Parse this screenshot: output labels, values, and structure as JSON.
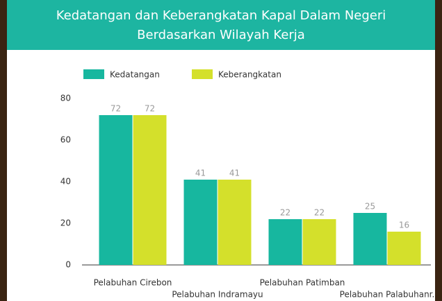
{
  "chart_data": {
    "type": "bar",
    "title": [
      "Kedatangan dan Keberangkatan Kapal Dalam Negeri",
      "Berdasarkan Wilayah Kerja"
    ],
    "categories": [
      "Pelabuhan Cirebon",
      "Pelabuhan Indramayu",
      "Pelabuhan Patimban",
      "Pelabuhan Palabuhanr."
    ],
    "series": [
      {
        "name": "Kedatangan",
        "color": "#17b79f",
        "values": [
          72,
          41,
          22,
          25
        ]
      },
      {
        "name": "Keberangkatan",
        "color": "#d4e02b",
        "values": [
          72,
          41,
          22,
          16
        ]
      }
    ],
    "ylim": [
      0,
      80
    ],
    "yticks": [
      0,
      20,
      40,
      60,
      80
    ],
    "grid": false,
    "legend": "top-left"
  }
}
